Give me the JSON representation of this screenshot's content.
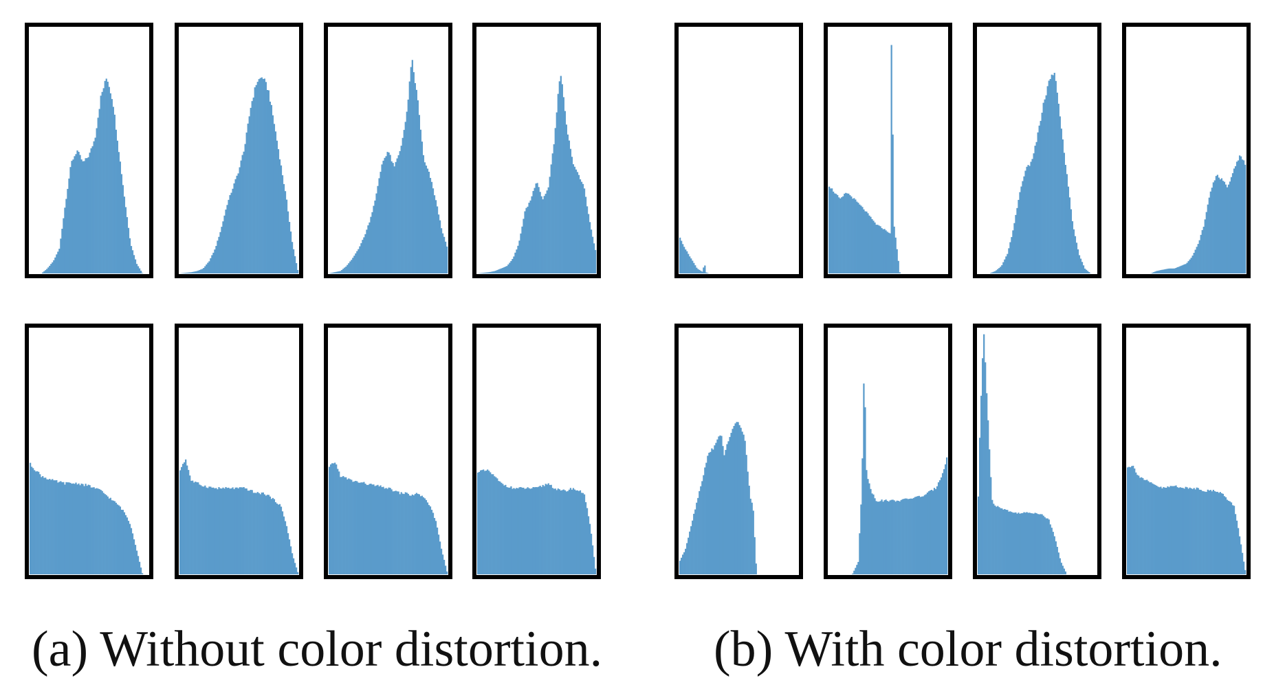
{
  "captions": {
    "left": "(a) Without color distortion.",
    "right": "(b) With color distortion."
  },
  "colors": {
    "bar": "#5a9bcb",
    "frame": "#000000"
  },
  "chart_data": [
    {
      "type": "area",
      "group": "without-color-distortion",
      "row": 1,
      "col": 1,
      "x": [
        0,
        0.1,
        0.15,
        0.2,
        0.25,
        0.3,
        0.35,
        0.4,
        0.45,
        0.5,
        0.55,
        0.6,
        0.65,
        0.7,
        0.75,
        0.8,
        0.85,
        0.9,
        0.95,
        1
      ],
      "values": [
        0,
        0,
        0.02,
        0.05,
        0.1,
        0.28,
        0.45,
        0.5,
        0.45,
        0.48,
        0.55,
        0.72,
        0.8,
        0.7,
        0.5,
        0.3,
        0.12,
        0.04,
        0,
        0
      ],
      "xlim": [
        0,
        1
      ],
      "ylim": [
        0,
        1
      ],
      "grid": false
    },
    {
      "type": "area",
      "group": "without-color-distortion",
      "row": 1,
      "col": 2,
      "x": [
        0,
        0.1,
        0.15,
        0.2,
        0.25,
        0.3,
        0.35,
        0.4,
        0.45,
        0.5,
        0.55,
        0.6,
        0.65,
        0.7,
        0.75,
        0.8,
        0.85,
        0.9,
        0.95,
        1
      ],
      "values": [
        0,
        0.005,
        0.01,
        0.02,
        0.05,
        0.1,
        0.18,
        0.28,
        0.35,
        0.42,
        0.52,
        0.68,
        0.78,
        0.8,
        0.74,
        0.6,
        0.45,
        0.3,
        0.12,
        0
      ],
      "xlim": [
        0,
        1
      ],
      "ylim": [
        0,
        1
      ],
      "grid": false
    },
    {
      "type": "area",
      "group": "without-color-distortion",
      "row": 1,
      "col": 3,
      "x": [
        0,
        0.1,
        0.15,
        0.2,
        0.25,
        0.3,
        0.35,
        0.4,
        0.45,
        0.5,
        0.55,
        0.6,
        0.65,
        0.7,
        0.75,
        0.8,
        0.85,
        0.9,
        0.95,
        1
      ],
      "values": [
        0,
        0.01,
        0.03,
        0.06,
        0.1,
        0.15,
        0.22,
        0.32,
        0.45,
        0.5,
        0.43,
        0.5,
        0.62,
        0.87,
        0.7,
        0.46,
        0.4,
        0.3,
        0.18,
        0.1
      ],
      "xlim": [
        0,
        1
      ],
      "ylim": [
        0,
        1
      ],
      "grid": false
    },
    {
      "type": "area",
      "group": "without-color-distortion",
      "row": 1,
      "col": 4,
      "x": [
        0,
        0.1,
        0.15,
        0.2,
        0.25,
        0.3,
        0.35,
        0.4,
        0.45,
        0.5,
        0.55,
        0.6,
        0.65,
        0.7,
        0.75,
        0.8,
        0.85,
        0.9,
        0.95,
        1
      ],
      "values": [
        0,
        0.005,
        0.01,
        0.02,
        0.03,
        0.06,
        0.12,
        0.25,
        0.3,
        0.38,
        0.3,
        0.35,
        0.55,
        0.83,
        0.6,
        0.46,
        0.4,
        0.35,
        0.2,
        0.08
      ],
      "xlim": [
        0,
        1
      ],
      "ylim": [
        0,
        1
      ],
      "grid": false
    },
    {
      "type": "area",
      "group": "with-color-distortion",
      "row": 1,
      "col": 1,
      "x": [
        0,
        0.05,
        0.1,
        0.15,
        0.2,
        0.21,
        0.22,
        0.25,
        0.3,
        1
      ],
      "values": [
        0.15,
        0.1,
        0.06,
        0.02,
        0.005,
        0.06,
        0.005,
        0,
        0,
        0
      ],
      "xlim": [
        0,
        1
      ],
      "ylim": [
        0,
        1
      ],
      "grid": false
    },
    {
      "type": "area",
      "group": "with-color-distortion",
      "row": 1,
      "col": 2,
      "x": [
        0,
        0.1,
        0.15,
        0.2,
        0.3,
        0.4,
        0.5,
        0.52,
        0.53,
        0.55,
        0.6,
        1
      ],
      "values": [
        0.36,
        0.3,
        0.33,
        0.31,
        0.26,
        0.2,
        0.17,
        0.16,
        1.0,
        0.2,
        0,
        0
      ],
      "xlim": [
        0,
        1
      ],
      "ylim": [
        0,
        1
      ],
      "grid": false
    },
    {
      "type": "area",
      "group": "with-color-distortion",
      "row": 1,
      "col": 3,
      "x": [
        0,
        0.1,
        0.15,
        0.2,
        0.25,
        0.3,
        0.35,
        0.4,
        0.45,
        0.5,
        0.55,
        0.6,
        0.65,
        0.7,
        0.75,
        0.8,
        0.85,
        0.9,
        0.95,
        1
      ],
      "values": [
        0,
        0,
        0.01,
        0.03,
        0.08,
        0.18,
        0.32,
        0.42,
        0.45,
        0.55,
        0.68,
        0.78,
        0.82,
        0.6,
        0.4,
        0.2,
        0.08,
        0.02,
        0,
        0
      ],
      "xlim": [
        0,
        1
      ],
      "ylim": [
        0,
        1
      ],
      "grid": false
    },
    {
      "type": "area",
      "group": "with-color-distortion",
      "row": 1,
      "col": 4,
      "x": [
        0,
        0.1,
        0.2,
        0.25,
        0.3,
        0.35,
        0.4,
        0.45,
        0.5,
        0.55,
        0.6,
        0.65,
        0.7,
        0.75,
        0.8,
        0.85,
        0.9,
        0.95,
        1
      ],
      "values": [
        0,
        0,
        0,
        0.01,
        0.015,
        0.02,
        0.02,
        0.03,
        0.04,
        0.07,
        0.12,
        0.2,
        0.33,
        0.4,
        0.38,
        0.35,
        0.43,
        0.48,
        0.44
      ],
      "xlim": [
        0,
        1
      ],
      "ylim": [
        0,
        1
      ],
      "grid": false
    },
    {
      "type": "area",
      "group": "without-color-distortion",
      "row": 2,
      "col": 1,
      "x": [
        0,
        0.1,
        0.2,
        0.3,
        0.4,
        0.5,
        0.55,
        0.6,
        0.65,
        0.7,
        0.75,
        0.8,
        0.85,
        0.9,
        0.95,
        1
      ],
      "values": [
        0.45,
        0.4,
        0.38,
        0.37,
        0.37,
        0.36,
        0.35,
        0.34,
        0.32,
        0.3,
        0.28,
        0.25,
        0.2,
        0.1,
        0,
        0
      ],
      "xlim": [
        0,
        1
      ],
      "ylim": [
        0,
        1
      ],
      "grid": false
    },
    {
      "type": "area",
      "group": "without-color-distortion",
      "row": 2,
      "col": 2,
      "x": [
        0,
        0.05,
        0.1,
        0.2,
        0.3,
        0.4,
        0.5,
        0.55,
        0.6,
        0.65,
        0.7,
        0.75,
        0.8,
        0.85,
        0.9,
        0.95,
        1
      ],
      "values": [
        0.42,
        0.47,
        0.38,
        0.36,
        0.35,
        0.35,
        0.35,
        0.35,
        0.34,
        0.33,
        0.33,
        0.32,
        0.3,
        0.28,
        0.2,
        0.08,
        0
      ],
      "xlim": [
        0,
        1
      ],
      "ylim": [
        0,
        1
      ],
      "grid": false
    },
    {
      "type": "area",
      "group": "without-color-distortion",
      "row": 2,
      "col": 3,
      "x": [
        0,
        0.05,
        0.1,
        0.2,
        0.3,
        0.4,
        0.5,
        0.55,
        0.6,
        0.65,
        0.7,
        0.75,
        0.8,
        0.85,
        0.9,
        0.95,
        1
      ],
      "values": [
        0.43,
        0.46,
        0.4,
        0.38,
        0.37,
        0.36,
        0.35,
        0.34,
        0.33,
        0.33,
        0.32,
        0.33,
        0.31,
        0.28,
        0.22,
        0.1,
        0
      ],
      "xlim": [
        0,
        1
      ],
      "ylim": [
        0,
        1
      ],
      "grid": false
    },
    {
      "type": "area",
      "group": "without-color-distortion",
      "row": 2,
      "col": 4,
      "x": [
        0,
        0.1,
        0.2,
        0.3,
        0.4,
        0.5,
        0.55,
        0.6,
        0.65,
        0.7,
        0.75,
        0.8,
        0.85,
        0.9,
        0.95,
        1
      ],
      "values": [
        0.42,
        0.42,
        0.37,
        0.35,
        0.35,
        0.35,
        0.36,
        0.37,
        0.35,
        0.34,
        0.34,
        0.35,
        0.34,
        0.33,
        0.2,
        0
      ],
      "xlim": [
        0,
        1
      ],
      "ylim": [
        0,
        1
      ],
      "grid": false
    },
    {
      "type": "area",
      "group": "with-color-distortion",
      "row": 2,
      "col": 1,
      "x": [
        0,
        0.05,
        0.1,
        0.15,
        0.2,
        0.25,
        0.3,
        0.35,
        0.38,
        0.4,
        0.45,
        0.5,
        0.55,
        0.6,
        0.62,
        0.65,
        0.7,
        1
      ],
      "values": [
        0.05,
        0.1,
        0.2,
        0.3,
        0.4,
        0.5,
        0.52,
        0.58,
        0.48,
        0.52,
        0.6,
        0.62,
        0.55,
        0.3,
        0.28,
        0,
        0,
        0
      ],
      "xlim": [
        0,
        1
      ],
      "ylim": [
        0,
        1
      ],
      "grid": false
    },
    {
      "type": "area",
      "group": "with-color-distortion",
      "row": 2,
      "col": 2,
      "x": [
        0,
        0.15,
        0.2,
        0.25,
        0.28,
        0.3,
        0.32,
        0.35,
        0.4,
        0.5,
        0.6,
        0.7,
        0.8,
        0.9,
        0.95,
        1
      ],
      "values": [
        0,
        0,
        0,
        0.05,
        0.35,
        0.87,
        0.42,
        0.35,
        0.3,
        0.3,
        0.3,
        0.31,
        0.32,
        0.35,
        0.4,
        0.48
      ],
      "xlim": [
        0,
        1
      ],
      "ylim": [
        0,
        1
      ],
      "grid": false
    },
    {
      "type": "area",
      "group": "with-color-distortion",
      "row": 2,
      "col": 3,
      "x": [
        0,
        0.02,
        0.05,
        0.08,
        0.1,
        0.12,
        0.15,
        0.2,
        0.3,
        0.4,
        0.5,
        0.55,
        0.6,
        0.65,
        0.7,
        0.75,
        1
      ],
      "values": [
        0.2,
        0.6,
        1.0,
        0.7,
        0.5,
        0.3,
        0.28,
        0.27,
        0.25,
        0.25,
        0.25,
        0.24,
        0.22,
        0.15,
        0.05,
        0,
        0
      ],
      "xlim": [
        0,
        1
      ],
      "ylim": [
        0,
        1
      ],
      "grid": false
    },
    {
      "type": "area",
      "group": "with-color-distortion",
      "row": 2,
      "col": 4,
      "x": [
        0,
        0.05,
        0.1,
        0.2,
        0.3,
        0.4,
        0.5,
        0.6,
        0.65,
        0.7,
        0.75,
        0.8,
        0.85,
        0.9,
        0.95,
        1
      ],
      "values": [
        0.44,
        0.44,
        0.4,
        0.37,
        0.35,
        0.36,
        0.35,
        0.35,
        0.34,
        0.34,
        0.34,
        0.33,
        0.3,
        0.28,
        0.15,
        0
      ],
      "xlim": [
        0,
        1
      ],
      "ylim": [
        0,
        1
      ],
      "grid": false
    }
  ]
}
